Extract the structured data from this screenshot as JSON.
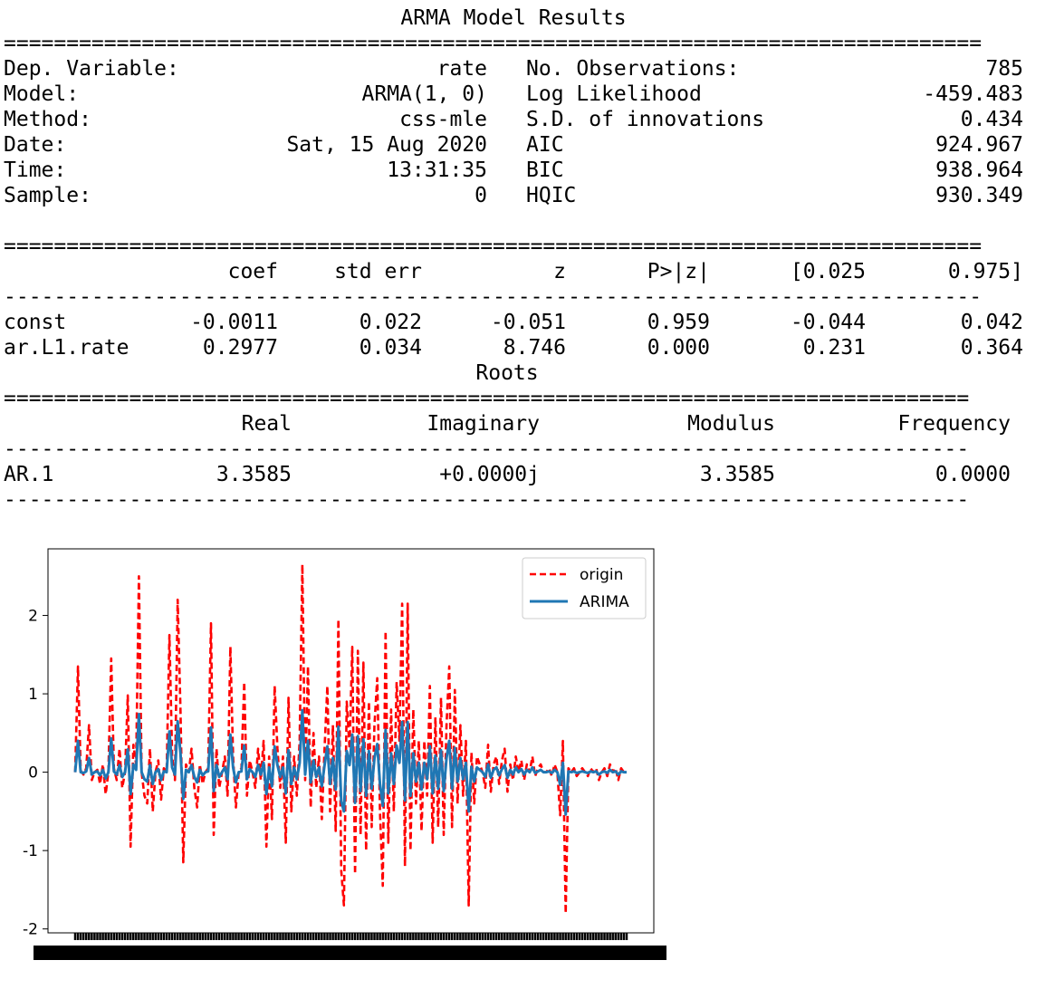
{
  "summary": {
    "title": "ARMA Model Results",
    "rule_double": "==============================================================================",
    "rule_single": "------------------------------------------------------------------------------",
    "roots_rule_double": "=============================================================================",
    "roots_rule_single": "-----------------------------------------------------------------------------",
    "left_info": [
      {
        "label": "Dep. Variable:",
        "value": "rate"
      },
      {
        "label": "Model:",
        "value": "ARMA(1, 0)"
      },
      {
        "label": "Method:",
        "value": "css-mle"
      },
      {
        "label": "Date:",
        "value": "Sat, 15 Aug 2020"
      },
      {
        "label": "Time:",
        "value": "13:31:35"
      },
      {
        "label": "Sample:",
        "value": "0"
      }
    ],
    "right_info": [
      {
        "label": "No. Observations:",
        "value": "785"
      },
      {
        "label": "Log Likelihood",
        "value": "-459.483"
      },
      {
        "label": "S.D. of innovations",
        "value": "0.434"
      },
      {
        "label": "AIC",
        "value": "924.967"
      },
      {
        "label": "BIC",
        "value": "938.964"
      },
      {
        "label": "HQIC",
        "value": "930.349"
      }
    ],
    "coef_header": [
      "coef",
      "std err",
      "z",
      "P>|z|",
      "[0.025",
      "0.975]"
    ],
    "coef_rows": [
      {
        "name": "const",
        "cells": [
          "-0.0011",
          "0.022",
          "-0.051",
          "0.959",
          "-0.044",
          "0.042"
        ]
      },
      {
        "name": "ar.L1.rate",
        "cells": [
          "0.2977",
          "0.034",
          "8.746",
          "0.000",
          "0.231",
          "0.364"
        ]
      }
    ],
    "roots_title": "Roots",
    "roots_header": [
      "Real",
      "Imaginary",
      "Modulus",
      "Frequency"
    ],
    "roots_rows": [
      {
        "name": "AR.1",
        "cells": [
          "3.3585",
          "+0.0000j",
          "3.3585",
          "0.0000"
        ]
      }
    ]
  },
  "chart_data": {
    "type": "line",
    "title": "",
    "xlabel": "",
    "ylabel": "",
    "ylim": [
      -2.05,
      2.85
    ],
    "yticks": [
      2,
      1,
      0,
      -1,
      -2
    ],
    "n_points": 200,
    "grid": false,
    "legend_position": "top-right",
    "series": [
      {
        "name": "origin",
        "color": "#ff0000",
        "style": "dashed",
        "values": [
          0.0,
          1.35,
          0.02,
          -0.03,
          0.05,
          0.6,
          -0.1,
          0.0,
          0.03,
          -0.15,
          0.1,
          -0.28,
          0.0,
          1.45,
          0.05,
          -0.1,
          0.3,
          -0.2,
          0.0,
          0.98,
          -0.95,
          0.35,
          0.1,
          2.5,
          0.0,
          -0.3,
          -0.4,
          0.3,
          -0.5,
          0.0,
          0.15,
          -0.35,
          0.05,
          0.0,
          1.75,
          0.2,
          -0.1,
          2.2,
          0.8,
          -1.15,
          0.1,
          0.0,
          0.3,
          -0.2,
          -0.45,
          0.1,
          -0.15,
          0.0,
          0.05,
          1.9,
          -0.8,
          0.3,
          -0.2,
          0.0,
          0.2,
          -0.3,
          1.6,
          0.2,
          -0.45,
          0.0,
          0.05,
          1.15,
          -0.3,
          0.15,
          0.0,
          -0.2,
          0.3,
          -0.1,
          0.4,
          -0.95,
          0.2,
          -0.6,
          1.1,
          0.3,
          -0.2,
          0.2,
          -0.9,
          0.95,
          -0.5,
          0.2,
          -0.3,
          0.4,
          2.65,
          -0.1,
          1.35,
          -0.45,
          0.5,
          -0.2,
          0.2,
          -0.6,
          0.3,
          1.1,
          -0.5,
          0.6,
          -0.75,
          1.95,
          -1.25,
          -1.7,
          0.9,
          0.3,
          1.6,
          -1.3,
          1.55,
          -0.8,
          1.4,
          -1.0,
          0.9,
          -0.7,
          0.6,
          1.2,
          -0.5,
          -1.45,
          1.8,
          -0.9,
          0.8,
          -0.5,
          1.15,
          0.4,
          2.15,
          -1.2,
          2.15,
          -1.0,
          0.8,
          -0.4,
          0.4,
          -0.75,
          0.4,
          -0.3,
          1.1,
          -0.9,
          0.7,
          -0.7,
          0.95,
          -0.8,
          0.6,
          1.35,
          -0.7,
          1.05,
          -0.4,
          0.6,
          -0.3,
          0.4,
          -1.7,
          0.25,
          -0.4,
          0.2,
          0.1,
          0.0,
          -0.2,
          0.35,
          -0.25,
          0.1,
          0.2,
          -0.15,
          0.15,
          0.3,
          -0.25,
          0.1,
          -0.1,
          0.2,
          0.0,
          0.15,
          -0.1,
          0.1,
          0.0,
          0.2,
          -0.05,
          0.05,
          0.1,
          0.0,
          0.0,
          0.05,
          -0.05,
          0.1,
          0.0,
          -0.55,
          0.4,
          -1.8,
          0.05,
          0.0,
          0.05,
          -0.05,
          0.0,
          0.05,
          0.0,
          -0.05,
          0.05,
          0.0,
          0.05,
          -0.1,
          0.0,
          0.05,
          -0.05,
          0.1,
          0.0,
          0.05,
          -0.1,
          0.05,
          0.0,
          0.0
        ]
      },
      {
        "name": "ARIMA",
        "color": "#1f77b4",
        "style": "solid",
        "values": [
          0.0,
          0.4,
          0.0,
          -0.01,
          0.01,
          0.18,
          -0.03,
          0.0,
          0.01,
          -0.04,
          0.03,
          -0.08,
          0.0,
          0.43,
          0.01,
          -0.03,
          0.09,
          -0.06,
          0.0,
          0.29,
          -0.28,
          0.1,
          0.03,
          0.74,
          0.0,
          -0.09,
          -0.12,
          0.09,
          -0.15,
          0.0,
          0.04,
          -0.1,
          0.01,
          0.0,
          0.52,
          0.06,
          -0.03,
          0.65,
          0.24,
          -0.34,
          0.03,
          0.0,
          0.09,
          -0.06,
          -0.13,
          0.03,
          -0.04,
          0.0,
          0.01,
          0.57,
          -0.24,
          0.09,
          -0.06,
          0.0,
          0.06,
          -0.09,
          0.48,
          0.06,
          -0.13,
          0.0,
          0.01,
          0.34,
          -0.09,
          0.04,
          0.0,
          -0.06,
          0.09,
          -0.03,
          0.12,
          -0.28,
          0.06,
          -0.18,
          0.33,
          0.09,
          -0.06,
          0.06,
          -0.27,
          0.28,
          -0.15,
          0.06,
          -0.09,
          0.12,
          0.79,
          -0.03,
          0.4,
          -0.13,
          0.15,
          -0.06,
          0.06,
          -0.18,
          0.09,
          0.33,
          -0.15,
          0.18,
          -0.22,
          0.58,
          -0.37,
          -0.5,
          0.27,
          0.09,
          0.48,
          -0.39,
          0.46,
          -0.24,
          0.42,
          -0.3,
          0.27,
          -0.21,
          0.18,
          0.36,
          -0.15,
          -0.43,
          0.54,
          -0.27,
          0.24,
          -0.15,
          0.34,
          0.12,
          0.64,
          -0.36,
          0.64,
          -0.3,
          0.24,
          -0.12,
          0.12,
          -0.22,
          0.12,
          -0.09,
          0.33,
          -0.27,
          0.21,
          -0.21,
          0.28,
          -0.24,
          0.18,
          0.4,
          -0.21,
          0.31,
          -0.12,
          0.18,
          -0.09,
          0.12,
          -0.5,
          0.07,
          -0.12,
          0.06,
          0.03,
          0.0,
          -0.06,
          0.1,
          -0.07,
          0.03,
          0.06,
          -0.04,
          0.04,
          0.09,
          -0.07,
          0.03,
          -0.03,
          0.06,
          0.0,
          0.04,
          -0.03,
          0.03,
          0.0,
          0.06,
          -0.01,
          0.01,
          0.03,
          0.0,
          0.0,
          0.01,
          -0.01,
          0.03,
          0.0,
          -0.16,
          0.12,
          -0.54,
          0.01,
          0.0,
          0.01,
          -0.01,
          0.0,
          0.01,
          0.0,
          -0.01,
          0.01,
          0.0,
          0.01,
          -0.03,
          0.0,
          0.01,
          -0.01,
          0.03,
          0.0,
          0.01,
          -0.03,
          0.01,
          0.0,
          0.0
        ]
      }
    ]
  }
}
